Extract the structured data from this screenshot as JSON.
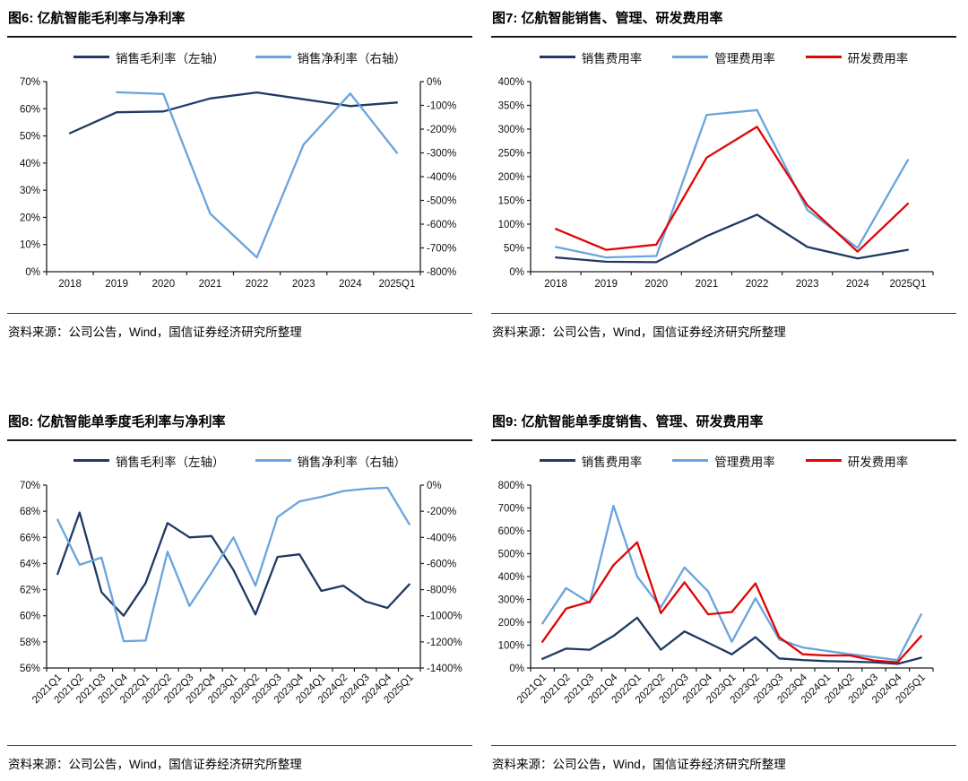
{
  "page": {
    "background": "#ffffff"
  },
  "colors": {
    "navy": "#1f3a63",
    "light_blue": "#6aa4dd",
    "red": "#e00505",
    "axis": "#1f1f1f",
    "label": "#111111"
  },
  "chart_data": [
    {
      "type": "line",
      "title": "图6: 亿航智能毛利率与净利率",
      "source": "资料来源：公司公告，Wind，国信证券经济研究所整理",
      "categories": [
        "2018",
        "2019",
        "2020",
        "2021",
        "2022",
        "2023",
        "2024",
        "2025Q1"
      ],
      "left_axis": {
        "min": 0,
        "max": 70,
        "step": 10,
        "suffix": "%"
      },
      "right_axis": {
        "min": -800,
        "max": 0,
        "step": 100,
        "suffix": "%"
      },
      "rotate_x_labels": false,
      "grid": false,
      "legend_position": "top",
      "series": [
        {
          "name": "销售毛利率（左轴）",
          "axis": "left",
          "color": "navy",
          "values": [
            51,
            58.7,
            59,
            63.8,
            66,
            63.5,
            61,
            62.3
          ]
        },
        {
          "name": "销售净利率（右轴）",
          "axis": "right",
          "color": "light_blue",
          "values": [
            null,
            -45,
            -52,
            -555,
            -740,
            -265,
            -50,
            -300
          ]
        }
      ]
    },
    {
      "type": "line",
      "title": "图7: 亿航智能销售、管理、研发费用率",
      "source": "资料来源：公司公告，Wind，国信证券经济研究所整理",
      "categories": [
        "2018",
        "2019",
        "2020",
        "2021",
        "2022",
        "2023",
        "2024",
        "2025Q1"
      ],
      "left_axis": {
        "min": 0,
        "max": 400,
        "step": 50,
        "suffix": "%"
      },
      "right_axis": null,
      "rotate_x_labels": false,
      "grid": false,
      "legend_position": "top",
      "series": [
        {
          "name": "销售费用率",
          "axis": "left",
          "color": "navy",
          "values": [
            30,
            21,
            20,
            75,
            120,
            52,
            28,
            46
          ]
        },
        {
          "name": "管理费用率",
          "axis": "left",
          "color": "light_blue",
          "values": [
            52,
            30,
            33,
            330,
            340,
            130,
            50,
            235
          ]
        },
        {
          "name": "研发费用率",
          "axis": "left",
          "color": "red",
          "values": [
            90,
            46,
            57,
            240,
            305,
            140,
            42,
            143
          ]
        }
      ]
    },
    {
      "type": "line",
      "title": "图8: 亿航智能单季度毛利率与净利率",
      "source": "资料来源：公司公告，Wind，国信证券经济研究所整理",
      "categories": [
        "2021Q1",
        "2021Q2",
        "2021Q3",
        "2021Q4",
        "2022Q1",
        "2022Q2",
        "2022Q3",
        "2022Q4",
        "2023Q1",
        "2023Q2",
        "2023Q3",
        "2023Q4",
        "2024Q1",
        "2024Q2",
        "2024Q3",
        "2024Q4",
        "2025Q1"
      ],
      "left_axis": {
        "min": 56,
        "max": 70,
        "step": 2,
        "suffix": "%"
      },
      "right_axis": {
        "min": -1400,
        "max": 0,
        "step": 200,
        "suffix": "%"
      },
      "rotate_x_labels": true,
      "grid": false,
      "legend_position": "top",
      "series": [
        {
          "name": "销售毛利率（左轴）",
          "axis": "left",
          "color": "navy",
          "values": [
            63.2,
            67.9,
            61.8,
            60,
            62.5,
            67.1,
            66,
            66.1,
            63.5,
            60.1,
            64.5,
            64.7,
            61.9,
            62.3,
            61.1,
            60.6,
            62.4
          ]
        },
        {
          "name": "销售净利率（右轴）",
          "axis": "right",
          "color": "light_blue",
          "values": [
            -265,
            -610,
            -555,
            -1195,
            -1190,
            -510,
            -925,
            -670,
            -400,
            -770,
            -245,
            -125,
            -90,
            -45,
            -28,
            -20,
            -300
          ]
        }
      ]
    },
    {
      "type": "line",
      "title": "图9: 亿航智能单季度销售、管理、研发费用率",
      "source": "资料来源：公司公告，Wind，国信证券经济研究所整理",
      "categories": [
        "2021Q1",
        "2021Q2",
        "2021Q3",
        "2021Q4",
        "2022Q1",
        "2022Q2",
        "2022Q3",
        "2022Q4",
        "2023Q1",
        "2023Q2",
        "2023Q3",
        "2023Q4",
        "2024Q1",
        "2024Q2",
        "2024Q3",
        "2024Q4",
        "2025Q1"
      ],
      "left_axis": {
        "min": 0,
        "max": 800,
        "step": 100,
        "suffix": "%"
      },
      "right_axis": null,
      "rotate_x_labels": true,
      "grid": false,
      "legend_position": "top",
      "series": [
        {
          "name": "销售费用率",
          "axis": "left",
          "color": "navy",
          "values": [
            40,
            85,
            80,
            140,
            220,
            80,
            160,
            110,
            60,
            135,
            42,
            35,
            30,
            28,
            25,
            18,
            45
          ]
        },
        {
          "name": "管理费用率",
          "axis": "left",
          "color": "light_blue",
          "values": [
            195,
            350,
            285,
            710,
            400,
            265,
            440,
            335,
            115,
            305,
            125,
            90,
            75,
            60,
            48,
            35,
            235
          ]
        },
        {
          "name": "研发费用率",
          "axis": "left",
          "color": "red",
          "values": [
            115,
            260,
            290,
            450,
            550,
            240,
            375,
            235,
            245,
            370,
            135,
            60,
            55,
            55,
            33,
            25,
            140
          ]
        }
      ]
    }
  ]
}
